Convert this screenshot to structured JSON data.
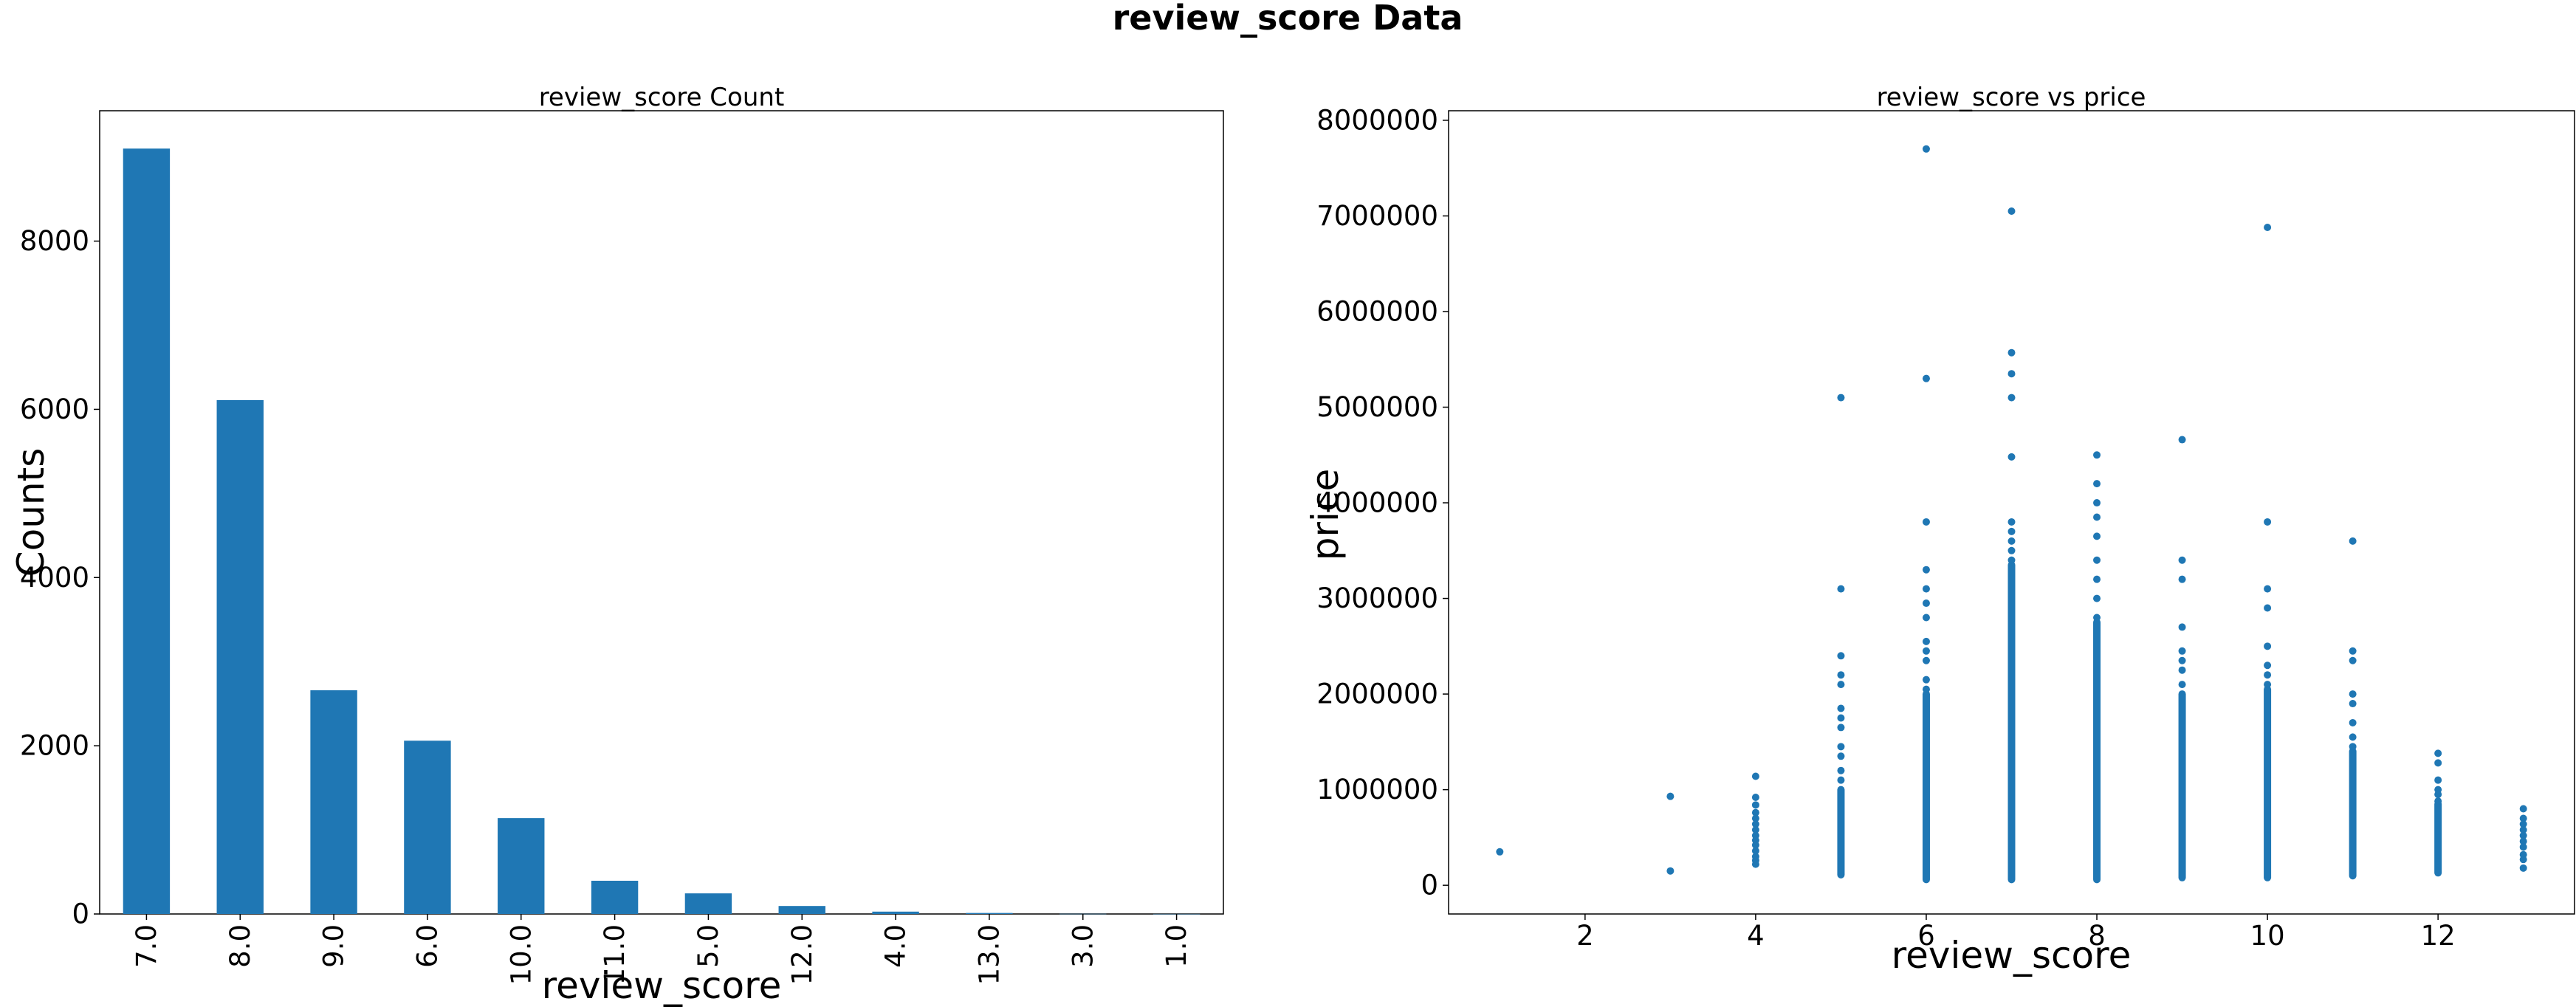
{
  "figure": {
    "title": "review_score Data"
  },
  "colors": {
    "bar": "#1f77b4",
    "point": "#1f77b4"
  },
  "chart_data": [
    {
      "type": "bar",
      "title": "review_score Count",
      "xlabel": "review_score",
      "ylabel": "Counts",
      "categories": [
        "7.0",
        "8.0",
        "9.0",
        "6.0",
        "10.0",
        "11.0",
        "5.0",
        "12.0",
        "4.0",
        "13.0",
        "3.0",
        "1.0"
      ],
      "values": [
        9100,
        6110,
        2660,
        2060,
        1140,
        395,
        245,
        95,
        28,
        12,
        2,
        1
      ],
      "ylim": [
        0,
        9550
      ],
      "yticks": [
        0,
        2000,
        4000,
        6000,
        8000
      ],
      "grid": false,
      "legend": "none"
    },
    {
      "type": "scatter",
      "title": "review_score vs price",
      "xlabel": "review_score",
      "ylabel": "price",
      "xlim": [
        0.4,
        13.6
      ],
      "ylim": [
        -300000,
        8100000
      ],
      "xticks": [
        2,
        4,
        6,
        8,
        10,
        12
      ],
      "yticks": [
        0,
        1000000,
        2000000,
        3000000,
        4000000,
        5000000,
        6000000,
        7000000,
        8000000
      ],
      "grid": false,
      "legend": "none",
      "points": [
        {
          "x": 1,
          "y": 350000
        },
        {
          "x": 3,
          "y": 930000
        },
        {
          "x": 3,
          "y": 150000
        },
        {
          "x": 4,
          "y": 1140000
        },
        {
          "x": 4,
          "y": 920000
        },
        {
          "x": 4,
          "y": 840000
        },
        {
          "x": 4,
          "y": 760000
        },
        {
          "x": 4,
          "y": 700000
        },
        {
          "x": 4,
          "y": 640000
        },
        {
          "x": 4,
          "y": 580000
        },
        {
          "x": 4,
          "y": 520000
        },
        {
          "x": 4,
          "y": 470000
        },
        {
          "x": 4,
          "y": 420000
        },
        {
          "x": 4,
          "y": 360000
        },
        {
          "x": 4,
          "y": 300000
        },
        {
          "x": 4,
          "y": 260000
        },
        {
          "x": 4,
          "y": 220000
        },
        {
          "x": 5,
          "y": 5100000
        },
        {
          "x": 5,
          "y": 3100000
        },
        {
          "x": 5,
          "y": 2400000
        },
        {
          "x": 5,
          "y": 2200000
        },
        {
          "x": 5,
          "y": 2100000
        },
        {
          "x": 5,
          "y": 1850000
        },
        {
          "x": 5,
          "y": 1750000
        },
        {
          "x": 5,
          "y": 1650000
        },
        {
          "x": 5,
          "y": 1450000
        },
        {
          "x": 5,
          "y": 1350000
        },
        {
          "x": 5,
          "y": 1200000
        },
        {
          "x": 5,
          "y": 1100000
        },
        {
          "x": 6,
          "y": 7700000
        },
        {
          "x": 6,
          "y": 5300000
        },
        {
          "x": 6,
          "y": 3800000
        },
        {
          "x": 6,
          "y": 3300000
        },
        {
          "x": 6,
          "y": 3100000
        },
        {
          "x": 6,
          "y": 2950000
        },
        {
          "x": 6,
          "y": 2800000
        },
        {
          "x": 6,
          "y": 2550000
        },
        {
          "x": 6,
          "y": 2450000
        },
        {
          "x": 6,
          "y": 2350000
        },
        {
          "x": 6,
          "y": 2150000
        },
        {
          "x": 6,
          "y": 2050000
        },
        {
          "x": 7,
          "y": 7050000
        },
        {
          "x": 7,
          "y": 5570000
        },
        {
          "x": 7,
          "y": 5350000
        },
        {
          "x": 7,
          "y": 5100000
        },
        {
          "x": 7,
          "y": 4480000
        },
        {
          "x": 7,
          "y": 3800000
        },
        {
          "x": 7,
          "y": 3700000
        },
        {
          "x": 7,
          "y": 3600000
        },
        {
          "x": 7,
          "y": 3500000
        },
        {
          "x": 7,
          "y": 3400000
        },
        {
          "x": 8,
          "y": 4500000
        },
        {
          "x": 8,
          "y": 4200000
        },
        {
          "x": 8,
          "y": 4000000
        },
        {
          "x": 8,
          "y": 3850000
        },
        {
          "x": 8,
          "y": 3650000
        },
        {
          "x": 8,
          "y": 3400000
        },
        {
          "x": 8,
          "y": 3200000
        },
        {
          "x": 8,
          "y": 3000000
        },
        {
          "x": 8,
          "y": 2800000
        },
        {
          "x": 9,
          "y": 4660000
        },
        {
          "x": 9,
          "y": 3400000
        },
        {
          "x": 9,
          "y": 3200000
        },
        {
          "x": 9,
          "y": 2700000
        },
        {
          "x": 9,
          "y": 2450000
        },
        {
          "x": 9,
          "y": 2350000
        },
        {
          "x": 9,
          "y": 2250000
        },
        {
          "x": 9,
          "y": 2100000
        },
        {
          "x": 10,
          "y": 6880000
        },
        {
          "x": 10,
          "y": 3800000
        },
        {
          "x": 10,
          "y": 3100000
        },
        {
          "x": 10,
          "y": 2900000
        },
        {
          "x": 10,
          "y": 2500000
        },
        {
          "x": 10,
          "y": 2300000
        },
        {
          "x": 10,
          "y": 2200000
        },
        {
          "x": 10,
          "y": 2100000
        },
        {
          "x": 11,
          "y": 3600000
        },
        {
          "x": 11,
          "y": 2450000
        },
        {
          "x": 11,
          "y": 2350000
        },
        {
          "x": 11,
          "y": 2000000
        },
        {
          "x": 11,
          "y": 1900000
        },
        {
          "x": 11,
          "y": 1700000
        },
        {
          "x": 11,
          "y": 1550000
        },
        {
          "x": 11,
          "y": 1450000
        },
        {
          "x": 12,
          "y": 1380000
        },
        {
          "x": 12,
          "y": 1280000
        },
        {
          "x": 12,
          "y": 1100000
        },
        {
          "x": 12,
          "y": 1000000
        },
        {
          "x": 12,
          "y": 950000
        },
        {
          "x": 12,
          "y": 880000
        },
        {
          "x": 13,
          "y": 800000
        },
        {
          "x": 13,
          "y": 700000
        },
        {
          "x": 13,
          "y": 640000
        },
        {
          "x": 13,
          "y": 580000
        },
        {
          "x": 13,
          "y": 520000
        },
        {
          "x": 13,
          "y": 460000
        },
        {
          "x": 13,
          "y": 400000
        },
        {
          "x": 13,
          "y": 320000
        },
        {
          "x": 13,
          "y": 270000
        },
        {
          "x": 13,
          "y": 180000
        }
      ],
      "ranges": [
        {
          "x": 5,
          "ymin": 110000,
          "ymax": 1000000
        },
        {
          "x": 6,
          "ymin": 60000,
          "ymax": 2000000
        },
        {
          "x": 7,
          "ymin": 60000,
          "ymax": 3350000
        },
        {
          "x": 8,
          "ymin": 60000,
          "ymax": 2750000
        },
        {
          "x": 9,
          "ymin": 80000,
          "ymax": 2000000
        },
        {
          "x": 10,
          "ymin": 80000,
          "ymax": 2050000
        },
        {
          "x": 11,
          "ymin": 100000,
          "ymax": 1400000
        },
        {
          "x": 12,
          "ymin": 130000,
          "ymax": 850000
        }
      ]
    }
  ]
}
